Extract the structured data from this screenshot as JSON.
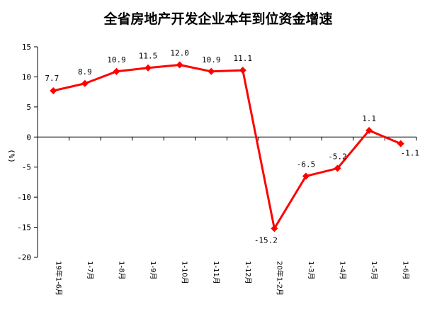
{
  "chart_data": {
    "type": "line",
    "title": "全省房地产开发企业本年到位资金增速",
    "ylabel": "(%)",
    "xlabel": "",
    "ylim": [
      -20,
      15
    ],
    "yticks": [
      15,
      10,
      5,
      0,
      -5,
      -10,
      -15,
      -20
    ],
    "categories": [
      "19年1-6月",
      "1-7月",
      "1-8月",
      "1-9月",
      "1-10月",
      "1-11月",
      "1-12月",
      "20年1-2月",
      "1-3月",
      "1-4月",
      "1-5月",
      "1-6月"
    ],
    "series": [
      {
        "values": [
          7.7,
          8.9,
          10.9,
          11.5,
          12.0,
          10.9,
          11.1,
          -15.2,
          -6.5,
          -5.2,
          1.1,
          -1.1
        ],
        "labels": [
          "7.7",
          "8.9",
          "10.9",
          "11.5",
          "12.0",
          "10.9",
          "11.1",
          "-15.2",
          "-6.5",
          "-5.2",
          "1.1",
          "-1.1"
        ],
        "color": "#ff0000"
      }
    ],
    "grid": false,
    "legend": "none"
  }
}
